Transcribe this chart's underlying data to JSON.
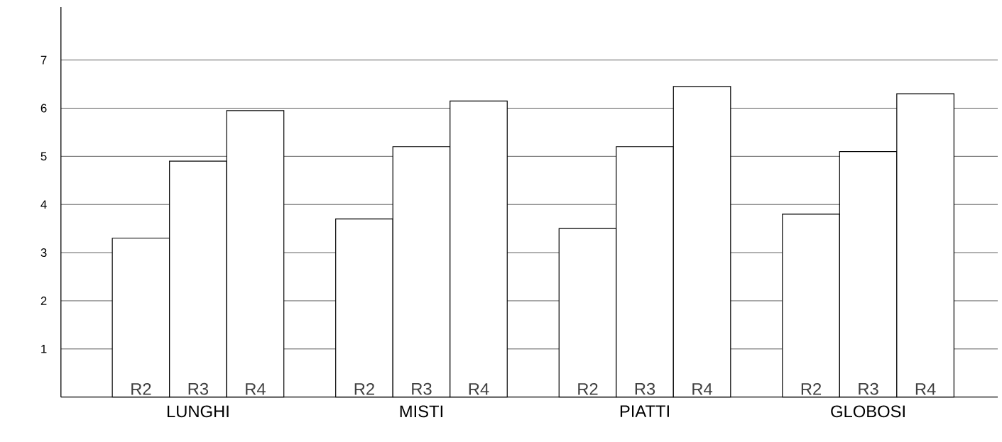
{
  "chart_data": {
    "type": "bar",
    "categories": [
      "LUNGHI",
      "MISTI",
      "PIATTI",
      "GLOBOSI"
    ],
    "series": [
      {
        "name": "R2",
        "color": "#ffffff",
        "values": [
          3.3,
          3.7,
          3.5,
          3.8
        ]
      },
      {
        "name": "R3",
        "color": "#ffffff",
        "values": [
          4.9,
          5.2,
          5.2,
          5.1
        ]
      },
      {
        "name": "R4",
        "color": "#ffffff",
        "values": [
          5.95,
          6.15,
          6.45,
          6.3
        ]
      }
    ],
    "ylim": [
      0,
      8.1
    ],
    "yticks": [
      1,
      2,
      3,
      4,
      5,
      6,
      7
    ],
    "grid": "y"
  }
}
